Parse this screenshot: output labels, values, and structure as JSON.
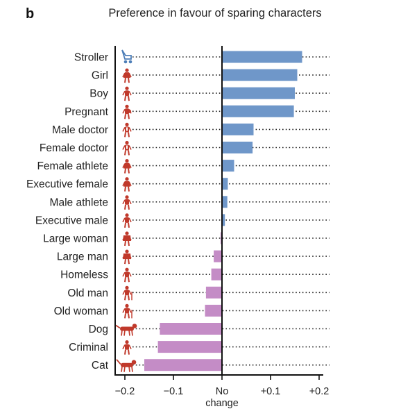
{
  "panel_label": "b",
  "chart_data": {
    "type": "bar",
    "orientation": "horizontal",
    "title": "Preference in favour of sparing characters",
    "categories": [
      "Stroller",
      "Girl",
      "Boy",
      "Pregnant",
      "Male doctor",
      "Female doctor",
      "Female athlete",
      "Executive female",
      "Male athlete",
      "Executive male",
      "Large woman",
      "Large man",
      "Homeless",
      "Old man",
      "Old woman",
      "Dog",
      "Criminal",
      "Cat"
    ],
    "values": [
      0.165,
      0.155,
      0.15,
      0.148,
      0.065,
      0.063,
      0.025,
      0.012,
      0.011,
      0.006,
      -0.003,
      -0.017,
      -0.022,
      -0.033,
      -0.035,
      -0.128,
      -0.132,
      -0.16
    ],
    "icon_names": [
      "stroller-icon",
      "girl-icon",
      "boy-icon",
      "pregnant-icon",
      "male-doctor-icon",
      "female-doctor-icon",
      "female-athlete-icon",
      "executive-female-icon",
      "male-athlete-icon",
      "executive-male-icon",
      "large-woman-icon",
      "large-man-icon",
      "homeless-icon",
      "old-man-icon",
      "old-woman-icon",
      "dog-icon",
      "criminal-icon",
      "cat-icon"
    ],
    "xlim": [
      -0.22,
      0.22
    ],
    "xticks": [
      -0.2,
      -0.1,
      0,
      0.1,
      0.2
    ],
    "xtick_labels": [
      "−0.2",
      "−0.1",
      "No",
      "+0.1",
      "+0.2"
    ],
    "zero_label_line2": "change",
    "xlabel": "",
    "ylabel": "",
    "colors": {
      "positive": "#6f97c9",
      "negative": "#c48cc6",
      "icon_human": "#c0392b",
      "icon_stroller": "#4e7fb8",
      "icon_animal": "#c0392b"
    }
  }
}
